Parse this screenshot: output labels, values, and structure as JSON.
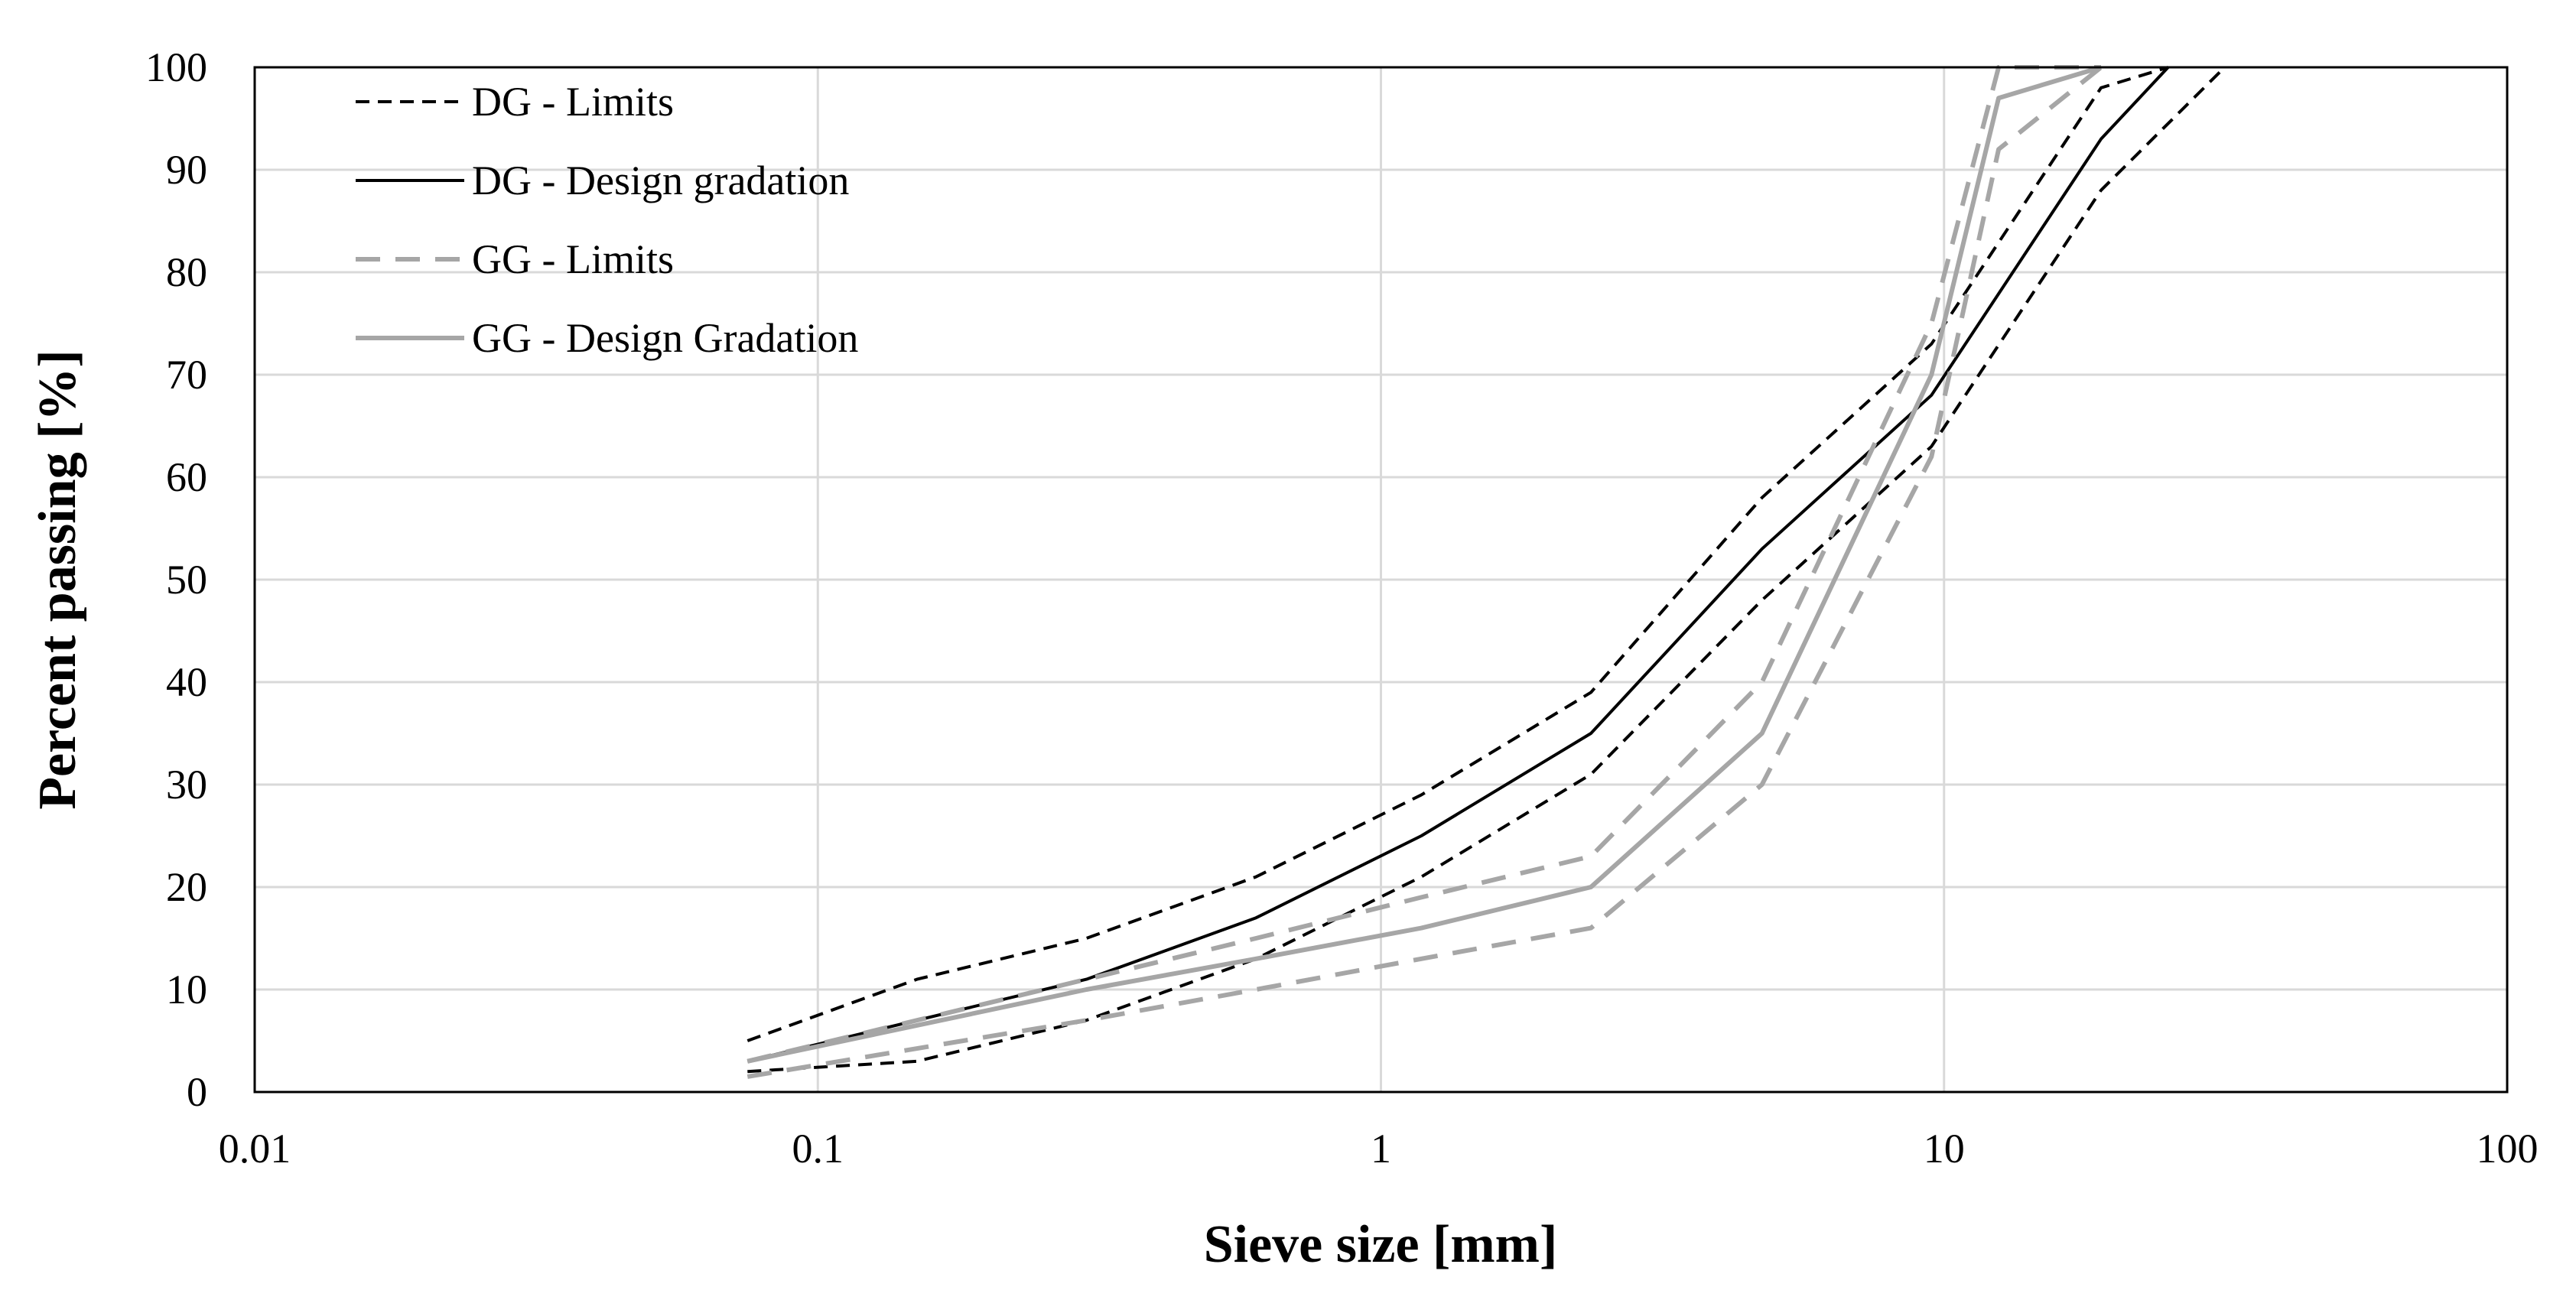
{
  "chart_data": {
    "type": "line",
    "title": "",
    "xlabel": "Sieve size [mm]",
    "ylabel": "Percent passing [%]",
    "xscale": "log",
    "xlim": [
      0.01,
      100
    ],
    "ylim": [
      0,
      100
    ],
    "grid": true,
    "legend_position": "top-left",
    "x_ticks": [
      0.01,
      0.1,
      1,
      10,
      100
    ],
    "x_tick_labels": [
      "0.01",
      "0.1",
      "1",
      "10",
      "100"
    ],
    "y_ticks": [
      0,
      10,
      20,
      30,
      40,
      50,
      60,
      70,
      80,
      90,
      100
    ],
    "y_tick_labels": [
      "0",
      "10",
      "20",
      "30",
      "40",
      "50",
      "60",
      "70",
      "80",
      "90",
      "100"
    ],
    "legend": [
      {
        "name": "DG - Limits",
        "color": "#000000",
        "dash": "dashed"
      },
      {
        "name": "DG - Design gradation",
        "color": "#000000",
        "dash": "solid"
      },
      {
        "name": "GG - Limits",
        "color": "#a6a6a6",
        "dash": "dashed"
      },
      {
        "name": "GG - Design Gradation",
        "color": "#a6a6a6",
        "dash": "solid"
      }
    ],
    "series": [
      {
        "name": "DG - Limits (upper)",
        "legend_group": "DG - Limits",
        "color": "#000000",
        "dash": "dashed",
        "points": [
          [
            0.075,
            5
          ],
          [
            0.15,
            11
          ],
          [
            0.3,
            15
          ],
          [
            0.6,
            21
          ],
          [
            1.18,
            29
          ],
          [
            2.36,
            39
          ],
          [
            4.75,
            58
          ],
          [
            9.5,
            73
          ],
          [
            19,
            98
          ],
          [
            25,
            100
          ]
        ]
      },
      {
        "name": "DG - Limits (lower)",
        "legend_group": "DG - Limits",
        "color": "#000000",
        "dash": "dashed",
        "points": [
          [
            0.075,
            2
          ],
          [
            0.15,
            3
          ],
          [
            0.3,
            7
          ],
          [
            0.6,
            13
          ],
          [
            1.18,
            21
          ],
          [
            2.36,
            31
          ],
          [
            4.75,
            48
          ],
          [
            9.5,
            63
          ],
          [
            19,
            88
          ],
          [
            31.5,
            100
          ]
        ]
      },
      {
        "name": "DG - Design gradation",
        "legend_group": "DG - Design gradation",
        "color": "#000000",
        "dash": "solid",
        "points": [
          [
            0.075,
            3
          ],
          [
            0.15,
            7
          ],
          [
            0.3,
            11
          ],
          [
            0.6,
            17
          ],
          [
            1.18,
            25
          ],
          [
            2.36,
            35
          ],
          [
            4.75,
            53
          ],
          [
            9.5,
            68
          ],
          [
            19,
            93
          ],
          [
            25,
            100
          ]
        ]
      },
      {
        "name": "GG - Limits (upper)",
        "legend_group": "GG - Limits",
        "color": "#a6a6a6",
        "dash": "dashed",
        "points": [
          [
            0.075,
            3
          ],
          [
            0.3,
            11
          ],
          [
            0.6,
            15
          ],
          [
            1.18,
            19
          ],
          [
            2.36,
            23
          ],
          [
            4.75,
            40
          ],
          [
            9.5,
            75
          ],
          [
            12.5,
            100
          ],
          [
            19,
            100
          ]
        ]
      },
      {
        "name": "GG - Limits (lower)",
        "legend_group": "GG - Limits",
        "color": "#a6a6a6",
        "dash": "dashed",
        "points": [
          [
            0.075,
            1.5
          ],
          [
            0.3,
            7
          ],
          [
            0.6,
            10
          ],
          [
            1.18,
            13
          ],
          [
            2.36,
            16
          ],
          [
            4.75,
            30
          ],
          [
            9.5,
            62
          ],
          [
            12.5,
            92
          ],
          [
            19,
            100
          ]
        ]
      },
      {
        "name": "GG - Design Gradation",
        "legend_group": "GG - Design Gradation",
        "color": "#a6a6a6",
        "dash": "solid",
        "points": [
          [
            0.075,
            3
          ],
          [
            0.3,
            10
          ],
          [
            0.6,
            13
          ],
          [
            1.18,
            16
          ],
          [
            2.36,
            20
          ],
          [
            4.75,
            35
          ],
          [
            9.5,
            70
          ],
          [
            12.5,
            97
          ],
          [
            19,
            100
          ]
        ]
      }
    ]
  }
}
